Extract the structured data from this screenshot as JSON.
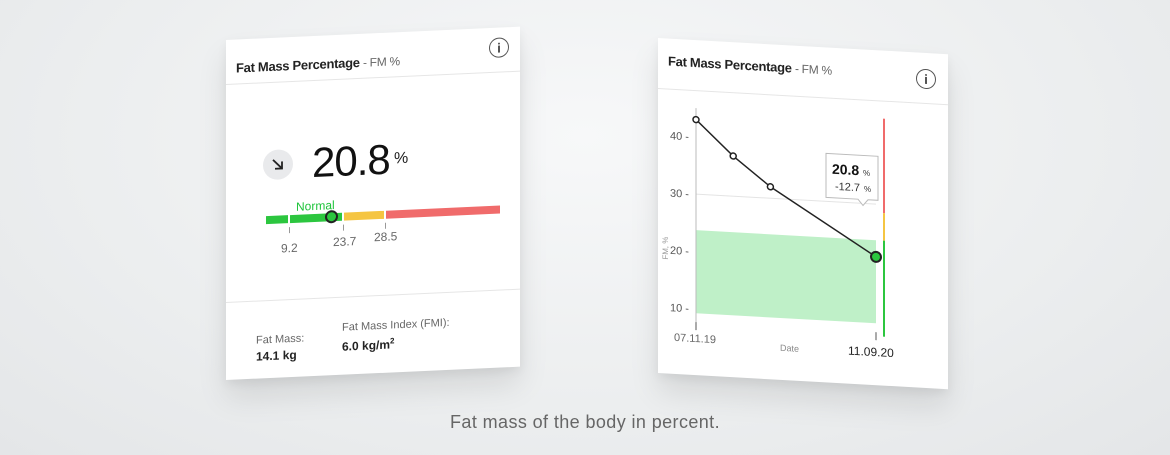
{
  "caption": "Fat mass of the body in percent.",
  "left_card": {
    "title": "Fat Mass Percentage",
    "subtitle": "- FM %",
    "trend_icon": "arrow-down-right-icon",
    "value": "20.8",
    "unit": "%",
    "range_label": "Normal",
    "thresholds": [
      "9.2",
      "23.7",
      "28.5"
    ],
    "fat_mass_label": "Fat Mass:",
    "fat_mass_value": "14.1 kg",
    "fmi_label": "Fat Mass Index (FMI):",
    "fmi_value": "6.0 kg/m",
    "fmi_sup": "2",
    "colors": {
      "green": "#2cc63f",
      "yellow": "#f5c542",
      "red": "#f06b6b"
    }
  },
  "right_card": {
    "title": "Fat Mass Percentage",
    "subtitle": "- FM %",
    "tooltip_value": "20.8",
    "tooltip_unit": "%",
    "tooltip_change": "-12.7",
    "tooltip_change_unit": "%",
    "chart_data": {
      "type": "line",
      "ylabel": "FM, %",
      "xlabel": "Date",
      "y_ticks": [
        "10",
        "20",
        "30",
        "40"
      ],
      "x_start_label": "07.11.19",
      "x_end_label": "11.09.20",
      "ylim": [
        8,
        45
      ],
      "points": [
        43,
        37,
        32,
        20.8
      ],
      "normal_range": [
        9.2,
        23.7
      ],
      "threshold_upper": 28.5
    }
  }
}
